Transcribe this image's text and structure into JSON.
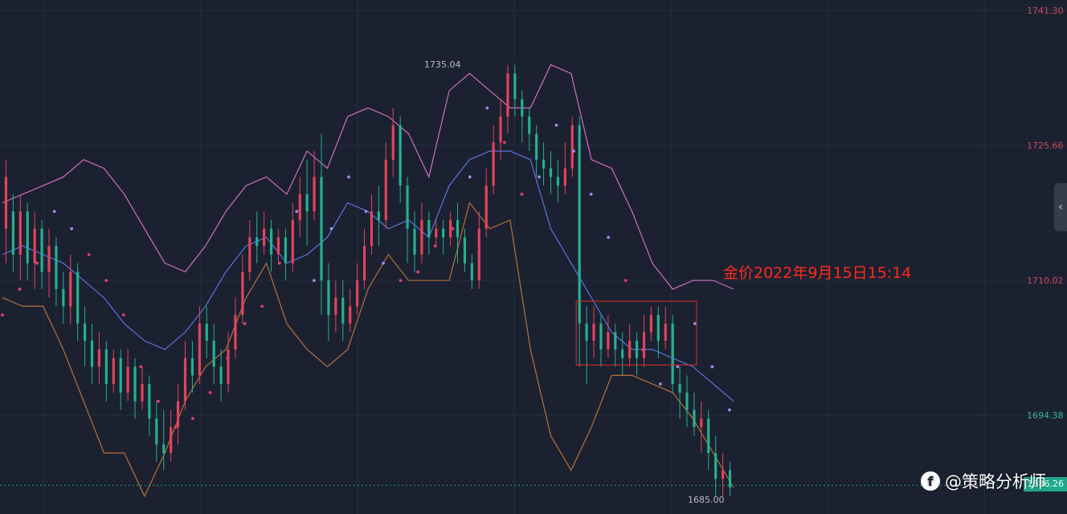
{
  "chart_data": {
    "type": "candlestick",
    "title": "",
    "annotation": "金价2022年9月15日15:14",
    "y_ticks": [
      "1741.30",
      "1725.66",
      "1710.02",
      "1694.38"
    ],
    "y_tick_values": [
      1741.3,
      1725.66,
      1710.02,
      1694.38
    ],
    "ylim": [
      1682.5,
      1742.5
    ],
    "last_price_label": "1686.26",
    "last_price": 1686.26,
    "high_label": "1735.04",
    "high_value": 1735.04,
    "low_label": "1685.00",
    "low_value": 1685.0,
    "indicators": [
      "Bollinger Bands (upper / middle / lower)",
      "Parabolic SAR"
    ],
    "grid": true,
    "colors": {
      "up": "#e2445c",
      "down": "#26b08f",
      "bb_upper": "#d16fbf",
      "bb_middle": "#5b74e0",
      "bb_lower": "#b8703a",
      "sar_above": "#9d8cf0",
      "sar_below": "#e0406a",
      "annotation_box": "#d9302a"
    },
    "candles": [
      [
        1716,
        1722,
        1712,
        1724
      ],
      [
        1718,
        1713,
        1711,
        1720
      ],
      [
        1713,
        1718,
        1710,
        1720
      ],
      [
        1718,
        1712,
        1710,
        1719
      ],
      [
        1712,
        1716,
        1709,
        1718
      ],
      [
        1716,
        1711,
        1709,
        1717
      ],
      [
        1711,
        1714,
        1708,
        1716
      ],
      [
        1714,
        1709,
        1707,
        1715
      ],
      [
        1709,
        1707,
        1705,
        1711
      ],
      [
        1707,
        1711,
        1705,
        1713
      ],
      [
        1711,
        1705,
        1703,
        1712
      ],
      [
        1705,
        1703,
        1700,
        1707
      ],
      [
        1703,
        1700,
        1698,
        1705
      ],
      [
        1700,
        1702,
        1698,
        1704
      ],
      [
        1702,
        1698,
        1696,
        1703
      ],
      [
        1698,
        1701,
        1697,
        1702
      ],
      [
        1701,
        1697,
        1695,
        1702
      ],
      [
        1697,
        1700,
        1696,
        1702
      ],
      [
        1700,
        1696,
        1694,
        1701
      ],
      [
        1696,
        1698,
        1695,
        1700
      ],
      [
        1698,
        1694,
        1692,
        1699
      ],
      [
        1694,
        1691,
        1689,
        1696
      ],
      [
        1691,
        1690,
        1688,
        1695
      ],
      [
        1690,
        1693,
        1689,
        1695
      ],
      [
        1693,
        1696,
        1691,
        1698
      ],
      [
        1696,
        1701,
        1695,
        1703
      ],
      [
        1701,
        1699,
        1697,
        1703
      ],
      [
        1699,
        1705,
        1698,
        1707
      ],
      [
        1705,
        1703,
        1701,
        1707
      ],
      [
        1703,
        1700,
        1698,
        1705
      ],
      [
        1700,
        1698,
        1696,
        1702
      ],
      [
        1698,
        1702,
        1697,
        1704
      ],
      [
        1702,
        1706,
        1701,
        1708
      ],
      [
        1706,
        1711,
        1705,
        1713
      ],
      [
        1711,
        1715,
        1710,
        1717
      ],
      [
        1715,
        1714,
        1712,
        1718
      ],
      [
        1714,
        1716,
        1713,
        1718
      ],
      [
        1716,
        1713,
        1711,
        1717
      ],
      [
        1713,
        1715,
        1712,
        1716
      ],
      [
        1715,
        1712,
        1710,
        1716
      ],
      [
        1712,
        1717,
        1711,
        1719
      ],
      [
        1717,
        1720,
        1715,
        1722
      ],
      [
        1720,
        1718,
        1714,
        1724
      ],
      [
        1718,
        1722,
        1717,
        1725
      ],
      [
        1722,
        1710,
        1706,
        1727
      ],
      [
        1710,
        1706,
        1703,
        1712
      ],
      [
        1706,
        1708,
        1704,
        1710
      ],
      [
        1708,
        1705,
        1703,
        1710
      ],
      [
        1705,
        1707,
        1704,
        1709
      ],
      [
        1707,
        1710,
        1706,
        1712
      ],
      [
        1710,
        1714,
        1709,
        1716
      ],
      [
        1714,
        1718,
        1713,
        1720
      ],
      [
        1718,
        1717,
        1714,
        1721
      ],
      [
        1717,
        1724,
        1716,
        1726
      ],
      [
        1724,
        1728,
        1722,
        1730
      ],
      [
        1728,
        1721,
        1719,
        1729
      ],
      [
        1721,
        1716,
        1712,
        1722
      ],
      [
        1716,
        1713,
        1711,
        1718
      ],
      [
        1713,
        1717,
        1712,
        1719
      ],
      [
        1717,
        1715,
        1713,
        1718
      ],
      [
        1715,
        1716,
        1714,
        1717
      ],
      [
        1716,
        1715,
        1713,
        1717
      ],
      [
        1715,
        1717,
        1714,
        1718
      ],
      [
        1717,
        1715,
        1712,
        1719
      ],
      [
        1715,
        1712,
        1711,
        1716
      ],
      [
        1712,
        1710,
        1709,
        1713
      ],
      [
        1710,
        1716,
        1709,
        1718
      ],
      [
        1716,
        1721,
        1715,
        1723
      ],
      [
        1721,
        1726,
        1720,
        1728
      ],
      [
        1726,
        1729,
        1724,
        1731
      ],
      [
        1729,
        1734,
        1727,
        1735
      ],
      [
        1734,
        1731,
        1729,
        1735
      ],
      [
        1731,
        1729,
        1726,
        1732
      ],
      [
        1729,
        1727,
        1725,
        1730
      ],
      [
        1727,
        1724,
        1722,
        1728
      ],
      [
        1724,
        1723,
        1721,
        1726
      ],
      [
        1723,
        1722,
        1720,
        1725
      ],
      [
        1722,
        1721,
        1719,
        1724
      ],
      [
        1721,
        1723,
        1720,
        1726
      ],
      [
        1723,
        1728,
        1722,
        1729
      ],
      [
        1728,
        1705,
        1700,
        1729
      ],
      [
        1705,
        1703,
        1698,
        1707
      ],
      [
        1703,
        1705,
        1701,
        1707
      ],
      [
        1705,
        1702,
        1700,
        1706
      ],
      [
        1702,
        1704,
        1701,
        1706
      ],
      [
        1704,
        1702,
        1700,
        1705
      ],
      [
        1702,
        1701,
        1699,
        1704
      ],
      [
        1701,
        1703,
        1700,
        1705
      ],
      [
        1703,
        1701,
        1699,
        1704
      ],
      [
        1701,
        1704,
        1700,
        1706
      ],
      [
        1704,
        1706,
        1703,
        1707
      ],
      [
        1706,
        1703,
        1701,
        1707
      ],
      [
        1703,
        1705,
        1702,
        1707
      ],
      [
        1705,
        1698,
        1697,
        1706
      ],
      [
        1698,
        1697,
        1694,
        1700
      ],
      [
        1697,
        1695,
        1693,
        1699
      ],
      [
        1695,
        1693,
        1692,
        1697
      ],
      [
        1693,
        1694,
        1690,
        1696
      ],
      [
        1694,
        1690,
        1688,
        1695
      ],
      [
        1690,
        1687,
        1685,
        1692
      ],
      [
        1687,
        1688,
        1685,
        1690
      ],
      [
        1688,
        1686,
        1685,
        1689
      ]
    ],
    "bb_upper": [
      1719,
      1720,
      1721,
      1722,
      1724,
      1723,
      1720,
      1716,
      1712,
      1711,
      1714,
      1718,
      1721,
      1722,
      1720,
      1725,
      1723,
      1729,
      1730,
      1729,
      1727,
      1722,
      1732,
      1734,
      1732,
      1730,
      1730,
      1735,
      1734,
      1724,
      1723,
      1718,
      1712,
      1709,
      1710,
      1710,
      1709
    ],
    "bb_middle": [
      1713,
      1714,
      1713,
      1712,
      1710,
      1708,
      1705,
      1703,
      1702,
      1704,
      1707,
      1711,
      1714,
      1715,
      1712,
      1713,
      1715,
      1719,
      1718,
      1716,
      1717,
      1715,
      1721,
      1724,
      1725,
      1725,
      1724,
      1716,
      1712,
      1708,
      1704,
      1702,
      1702,
      1701,
      1700,
      1698,
      1696
    ],
    "bb_lower": [
      1708,
      1707,
      1707,
      1702,
      1696,
      1690,
      1690,
      1685,
      1690,
      1696,
      1700,
      1702,
      1708,
      1712,
      1705,
      1702,
      1700,
      1702,
      1709,
      1713,
      1710,
      1710,
      1710,
      1719,
      1716,
      1717,
      1702,
      1692,
      1688,
      1693,
      1699,
      1699,
      1698,
      1697,
      1694,
      1690,
      1686
    ],
    "sar": [
      1706,
      1709,
      1712,
      1718,
      1716,
      1713,
      1710,
      1706,
      1700,
      1696,
      1693,
      1694,
      1697,
      1701,
      1705,
      1707,
      1712,
      1718,
      1710,
      1716,
      1722,
      1718,
      1712,
      1710,
      1711,
      1714,
      1716,
      1722,
      1730,
      1726,
      1720,
      1722,
      1728,
      1725,
      1720,
      1715,
      1710,
      1702,
      1698,
      1700,
      1705,
      1700,
      1695
    ],
    "sar_above": [
      false,
      false,
      false,
      true,
      true,
      false,
      false,
      false,
      false,
      false,
      false,
      false,
      false,
      false,
      false,
      false,
      false,
      true,
      true,
      true,
      true,
      true,
      true,
      false,
      false,
      false,
      false,
      true,
      true,
      false,
      false,
      true,
      true,
      true,
      true,
      true,
      false,
      false,
      true,
      true,
      true,
      true,
      true
    ]
  }
}
